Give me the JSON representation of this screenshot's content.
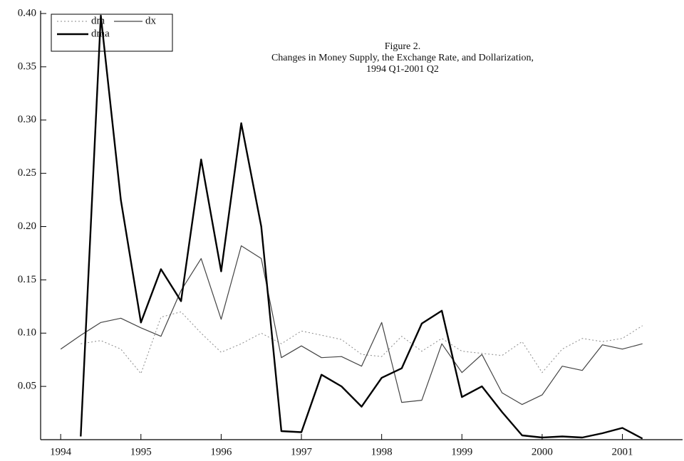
{
  "chart_data": {
    "type": "line",
    "title": [
      "Figure 2.",
      "Changes in Money Supply, the Exchange Rate, and Dollarization,",
      "1994 Q1-2001 Q2"
    ],
    "x": [
      1994,
      1994.25,
      1994.5,
      1994.75,
      1995,
      1995.25,
      1995.5,
      1995.75,
      1996,
      1996.25,
      1996.5,
      1996.75,
      1997,
      1997.25,
      1997.5,
      1997.75,
      1998,
      1998.25,
      1998.5,
      1998.75,
      1999,
      1999.25,
      1999.5,
      1999.75,
      2000,
      2000.25,
      2000.5,
      2000.75,
      2001,
      2001.25
    ],
    "series": [
      {
        "name": "dm",
        "color": "#8a8a8a",
        "style": "dotted",
        "line_width": 1,
        "values": [
          null,
          0.09,
          0.093,
          0.085,
          0.062,
          0.115,
          0.12,
          0.1,
          0.082,
          0.09,
          0.1,
          0.09,
          0.102,
          0.098,
          0.094,
          0.08,
          0.078,
          0.097,
          0.083,
          0.095,
          0.083,
          0.081,
          0.079,
          0.092,
          0.063,
          0.085,
          0.095,
          0.092,
          0.095,
          0.107
        ]
      },
      {
        "name": "dx",
        "color": "#444444",
        "style": "solid",
        "line_width": 1.2,
        "values": [
          0.085,
          0.098,
          0.11,
          0.114,
          0.105,
          0.097,
          0.14,
          0.17,
          0.113,
          0.182,
          0.17,
          0.077,
          0.088,
          0.077,
          0.078,
          0.069,
          0.11,
          0.035,
          0.037,
          0.09,
          0.063,
          0.08,
          0.044,
          0.033,
          0.042,
          0.069,
          0.065,
          0.089,
          0.085,
          0.09
        ]
      },
      {
        "name": "dma",
        "color": "#000000",
        "style": "solid",
        "line_width": 2.4,
        "values": [
          null,
          0.003,
          0.398,
          0.225,
          0.11,
          0.16,
          0.13,
          0.263,
          0.158,
          0.297,
          0.2,
          0.008,
          0.007,
          0.061,
          0.05,
          0.031,
          0.058,
          0.067,
          0.109,
          0.121,
          0.04,
          0.05,
          0.026,
          0.004,
          0.002,
          0.003,
          0.002,
          0.006,
          0.011,
          0.001
        ]
      }
    ],
    "xlim": [
      1993.75,
      2001.75
    ],
    "xticks": [
      1994,
      1995,
      1996,
      1997,
      1998,
      1999,
      2000,
      2001
    ],
    "ylim": [
      0,
      0.4
    ],
    "yticks": [
      0.05,
      {
        "value": 0.1,
        "label": "0.10"
      },
      0.15,
      {
        "value": 0.2,
        "label": "0.20"
      },
      0.25,
      {
        "value": 0.3,
        "label": "0.30"
      },
      0.35,
      {
        "value": 0.4,
        "label": "0.40"
      }
    ],
    "grid": false,
    "legend": "upper left"
  }
}
